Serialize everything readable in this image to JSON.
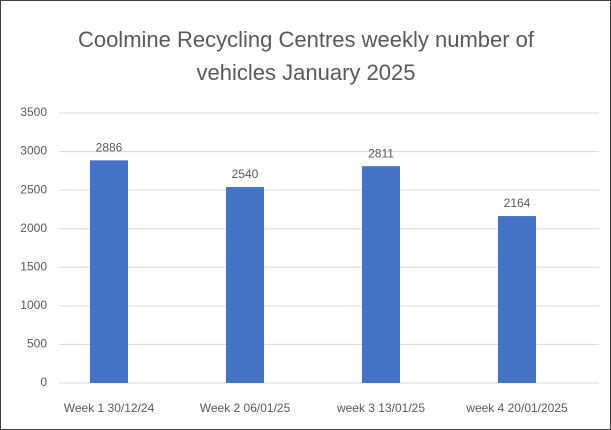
{
  "chart_data": {
    "type": "bar",
    "title": "Coolmine Recycling Centres weekly number of vehicles January 2025",
    "categories": [
      "Week 1 30/12/24",
      "Week 2 06/01/25",
      "week 3 13/01/25",
      "week 4 20/01/2025"
    ],
    "values": [
      2886,
      2540,
      2811,
      2164
    ],
    "color": "#4472c4",
    "ylim": [
      0,
      3500
    ],
    "yticks": [
      0,
      500,
      1000,
      1500,
      2000,
      2500,
      3000,
      3500
    ],
    "grid": true
  }
}
